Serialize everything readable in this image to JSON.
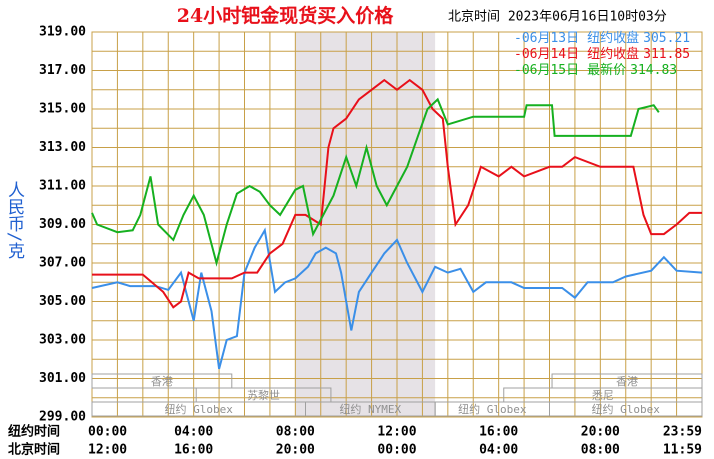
{
  "chart_data": {
    "type": "line",
    "title": "24小时钯金现货买入价格",
    "subtitle": "北京时间  2023年06月16日10时03分",
    "y_label": "人民币/克",
    "x_label": "纽约时间",
    "x2_label": "北京时间",
    "xlim": [
      0,
      24
    ],
    "xticks": [
      {
        "value": 0,
        "label": "00:00"
      },
      {
        "value": 4,
        "label": "04:00"
      },
      {
        "value": 8,
        "label": "08:00"
      },
      {
        "value": 12,
        "label": "12:00"
      },
      {
        "value": 16,
        "label": "16:00"
      },
      {
        "value": 20,
        "label": "20:00"
      },
      {
        "value": 24,
        "label": "23:59"
      }
    ],
    "x2ticks": [
      "12:00",
      "16:00",
      "20:00",
      "00:00",
      "04:00",
      "08:00",
      "11:59"
    ],
    "xgridlines": [
      1,
      2,
      3,
      5,
      6,
      7,
      9,
      10,
      11,
      13,
      14,
      15,
      17,
      18,
      19,
      21,
      22,
      23
    ],
    "ylim": [
      299,
      319
    ],
    "yticks": [
      {
        "value": 299,
        "label": "299.00"
      },
      {
        "value": 301,
        "label": "301.00"
      },
      {
        "value": 303,
        "label": "303.00"
      },
      {
        "value": 305,
        "label": "305.00"
      },
      {
        "value": 307,
        "label": "307.00"
      },
      {
        "value": 309,
        "label": "309.00"
      },
      {
        "value": 311,
        "label": "311.00"
      },
      {
        "value": 313,
        "label": "313.00"
      },
      {
        "value": 315,
        "label": "315.00"
      },
      {
        "value": 317,
        "label": "317.00"
      },
      {
        "value": 319,
        "label": "319.00"
      }
    ],
    "ygridlines": [
      300,
      302,
      304,
      306,
      308,
      310,
      312,
      314,
      316,
      318
    ],
    "grid": true,
    "shaded": [
      8,
      13.5
    ],
    "sessions": [
      {
        "label": "香港",
        "start": 0,
        "end": 5.5,
        "row": 0
      },
      {
        "label": "香港",
        "start": 18.1,
        "end": 24,
        "row": 0
      },
      {
        "label": "苏黎世",
        "start": 4.1,
        "end": 9.4,
        "row": 1
      },
      {
        "label": "悉尼",
        "start": 16.2,
        "end": 24,
        "row": 1
      },
      {
        "label": "纽约 Globex",
        "start": 0,
        "end": 8.4,
        "row": 2
      },
      {
        "label": "纽约 NYMEX",
        "start": 8.4,
        "end": 13.5,
        "row": 2
      },
      {
        "label": "纽约 Globex",
        "start": 13.5,
        "end": 18,
        "row": 2
      },
      {
        "label": "纽约 Globex",
        "start": 18,
        "end": 24,
        "row": 2
      }
    ],
    "series": [
      {
        "name": "06月13日",
        "note": "纽约收盘",
        "price": 305.21,
        "color": "#3b8fe8",
        "x": [
          0,
          1,
          1.5,
          2.5,
          3,
          3.5,
          4,
          4.3,
          4.7,
          5,
          5.3,
          5.7,
          6,
          6.4,
          6.8,
          7.2,
          7.6,
          8,
          8.5,
          8.8,
          9.2,
          9.6,
          9.8,
          10.2,
          10.5,
          11,
          11.5,
          12,
          12.4,
          13,
          13.5,
          14,
          14.5,
          15,
          15.5,
          16.5,
          17,
          18.5,
          19,
          19.5,
          20.5,
          21,
          22,
          22.5,
          23,
          24
        ],
        "values": [
          305.7,
          306,
          305.8,
          305.8,
          305.6,
          306.5,
          304,
          306.5,
          304.5,
          301.5,
          303,
          303.2,
          306.5,
          307.8,
          308.7,
          305.5,
          306,
          306.2,
          306.8,
          307.5,
          307.8,
          307.5,
          306.5,
          303.5,
          305.5,
          306.5,
          307.5,
          308.2,
          307,
          305.5,
          306.8,
          306.5,
          306.7,
          305.5,
          306,
          306,
          305.7,
          305.7,
          305.2,
          306,
          306,
          306.3,
          306.6,
          307.3,
          306.6,
          306.5
        ]
      },
      {
        "name": "06月14日",
        "note": "纽约收盘",
        "price": 311.85,
        "color": "#e8101a",
        "x": [
          0,
          2,
          2.8,
          3.2,
          3.5,
          3.8,
          4.2,
          5.5,
          6,
          6.5,
          7,
          7.5,
          8,
          8.4,
          9,
          9.3,
          9.5,
          10,
          10.5,
          11,
          11.5,
          12,
          12.5,
          13,
          13.4,
          13.8,
          14,
          14.3,
          14.8,
          15.3,
          16,
          16.5,
          17,
          18,
          18.5,
          19,
          20,
          21.3,
          21.7,
          22,
          22.5,
          23,
          23.5,
          24
        ],
        "values": [
          306.4,
          306.4,
          305.5,
          304.7,
          305,
          306.5,
          306.2,
          306.2,
          306.5,
          306.5,
          307.5,
          308,
          309.5,
          309.5,
          309,
          313,
          314,
          314.5,
          315.5,
          316,
          316.5,
          316,
          316.5,
          316,
          315,
          314.5,
          312,
          309,
          310,
          312,
          311.5,
          312,
          311.5,
          312,
          312,
          312.5,
          312,
          312,
          309.5,
          308.5,
          308.5,
          309,
          309.6,
          309.6
        ]
      },
      {
        "name": "06月15日",
        "note": "最新价",
        "price": 314.83,
        "color": "#16b020",
        "x": [
          0,
          0.2,
          1,
          1.6,
          1.9,
          2.3,
          2.6,
          3.2,
          3.6,
          4,
          4.4,
          4.9,
          5.3,
          5.7,
          6.2,
          6.6,
          7,
          7.4,
          8,
          8.3,
          8.7,
          9.1,
          9.5,
          10,
          10.4,
          10.8,
          11.2,
          11.6,
          12,
          12.4,
          12.8,
          13.2,
          13.6,
          14,
          15,
          17,
          17.1,
          18.1,
          18.2,
          21.2,
          21.5,
          22.1,
          22.3
        ],
        "values": [
          309.6,
          309,
          308.6,
          308.7,
          309.5,
          311.5,
          309,
          308.2,
          309.5,
          310.5,
          309.5,
          307,
          309,
          310.6,
          311,
          310.7,
          310,
          309.5,
          310.8,
          311,
          308.5,
          309.5,
          310.5,
          312.5,
          311,
          313,
          311,
          310,
          311,
          312,
          313.5,
          315,
          315.5,
          314.2,
          314.6,
          314.6,
          315.2,
          315.2,
          313.6,
          313.6,
          315,
          315.2,
          314.83
        ]
      }
    ]
  }
}
